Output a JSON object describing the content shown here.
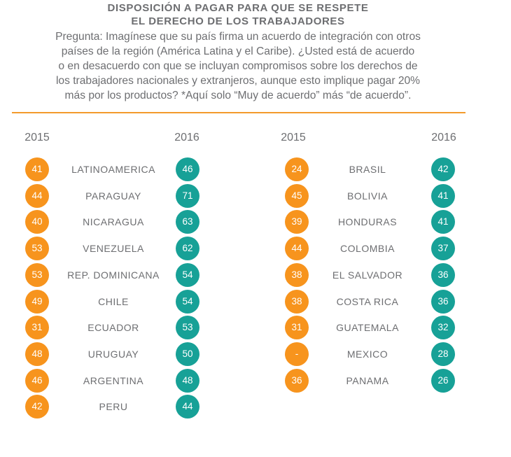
{
  "title": {
    "line1": "DISPOSICIÓN A PAGAR PARA QUE SE RESPETE",
    "line2": "EL DERECHO DE LOS TRABAJADORES"
  },
  "question": {
    "lines": [
      "Pregunta: Imagínese que su país firma un acuerdo de integración con otros",
      "países de la región (América Latina y el Caribe). ¿Usted está de acuerdo",
      "o en desacuerdo con que se incluyan compromisos sobre los derechos de",
      "los trabajadores nacionales y extranjeros, aunque esto implique pagar 20%",
      "más por los productos? *Aquí solo “Muy de acuerdo” más “de acuerdo”."
    ]
  },
  "colors": {
    "year_2015": "#f7941d",
    "year_2016": "#17a197",
    "rule": "#f39a2c"
  },
  "chart_data": {
    "type": "table",
    "columns": [
      "2015",
      "2016"
    ],
    "left_table": [
      {
        "country": "LATINOAMERICA",
        "v2015": "41",
        "v2016": "46"
      },
      {
        "country": "PARAGUAY",
        "v2015": "44",
        "v2016": "71"
      },
      {
        "country": "NICARAGUA",
        "v2015": "40",
        "v2016": "63"
      },
      {
        "country": "VENEZUELA",
        "v2015": "53",
        "v2016": "62"
      },
      {
        "country": "REP. DOMINICANA",
        "v2015": "53",
        "v2016": "54"
      },
      {
        "country": "CHILE",
        "v2015": "49",
        "v2016": "54"
      },
      {
        "country": "ECUADOR",
        "v2015": "31",
        "v2016": "53"
      },
      {
        "country": "URUGUAY",
        "v2015": "48",
        "v2016": "50"
      },
      {
        "country": "ARGENTINA",
        "v2015": "46",
        "v2016": "48"
      },
      {
        "country": "PERU",
        "v2015": "42",
        "v2016": "44"
      }
    ],
    "right_table": [
      {
        "country": "BRASIL",
        "v2015": "24",
        "v2016": "42"
      },
      {
        "country": "BOLIVIA",
        "v2015": "45",
        "v2016": "41"
      },
      {
        "country": "HONDURAS",
        "v2015": "39",
        "v2016": "41"
      },
      {
        "country": "COLOMBIA",
        "v2015": "44",
        "v2016": "37"
      },
      {
        "country": "EL SALVADOR",
        "v2015": "38",
        "v2016": "36"
      },
      {
        "country": "COSTA RICA",
        "v2015": "38",
        "v2016": "36"
      },
      {
        "country": "GUATEMALA",
        "v2015": "31",
        "v2016": "32"
      },
      {
        "country": "MEXICO",
        "v2015": "-",
        "v2016": "28"
      },
      {
        "country": "PANAMA",
        "v2015": "36",
        "v2016": "26"
      }
    ]
  }
}
